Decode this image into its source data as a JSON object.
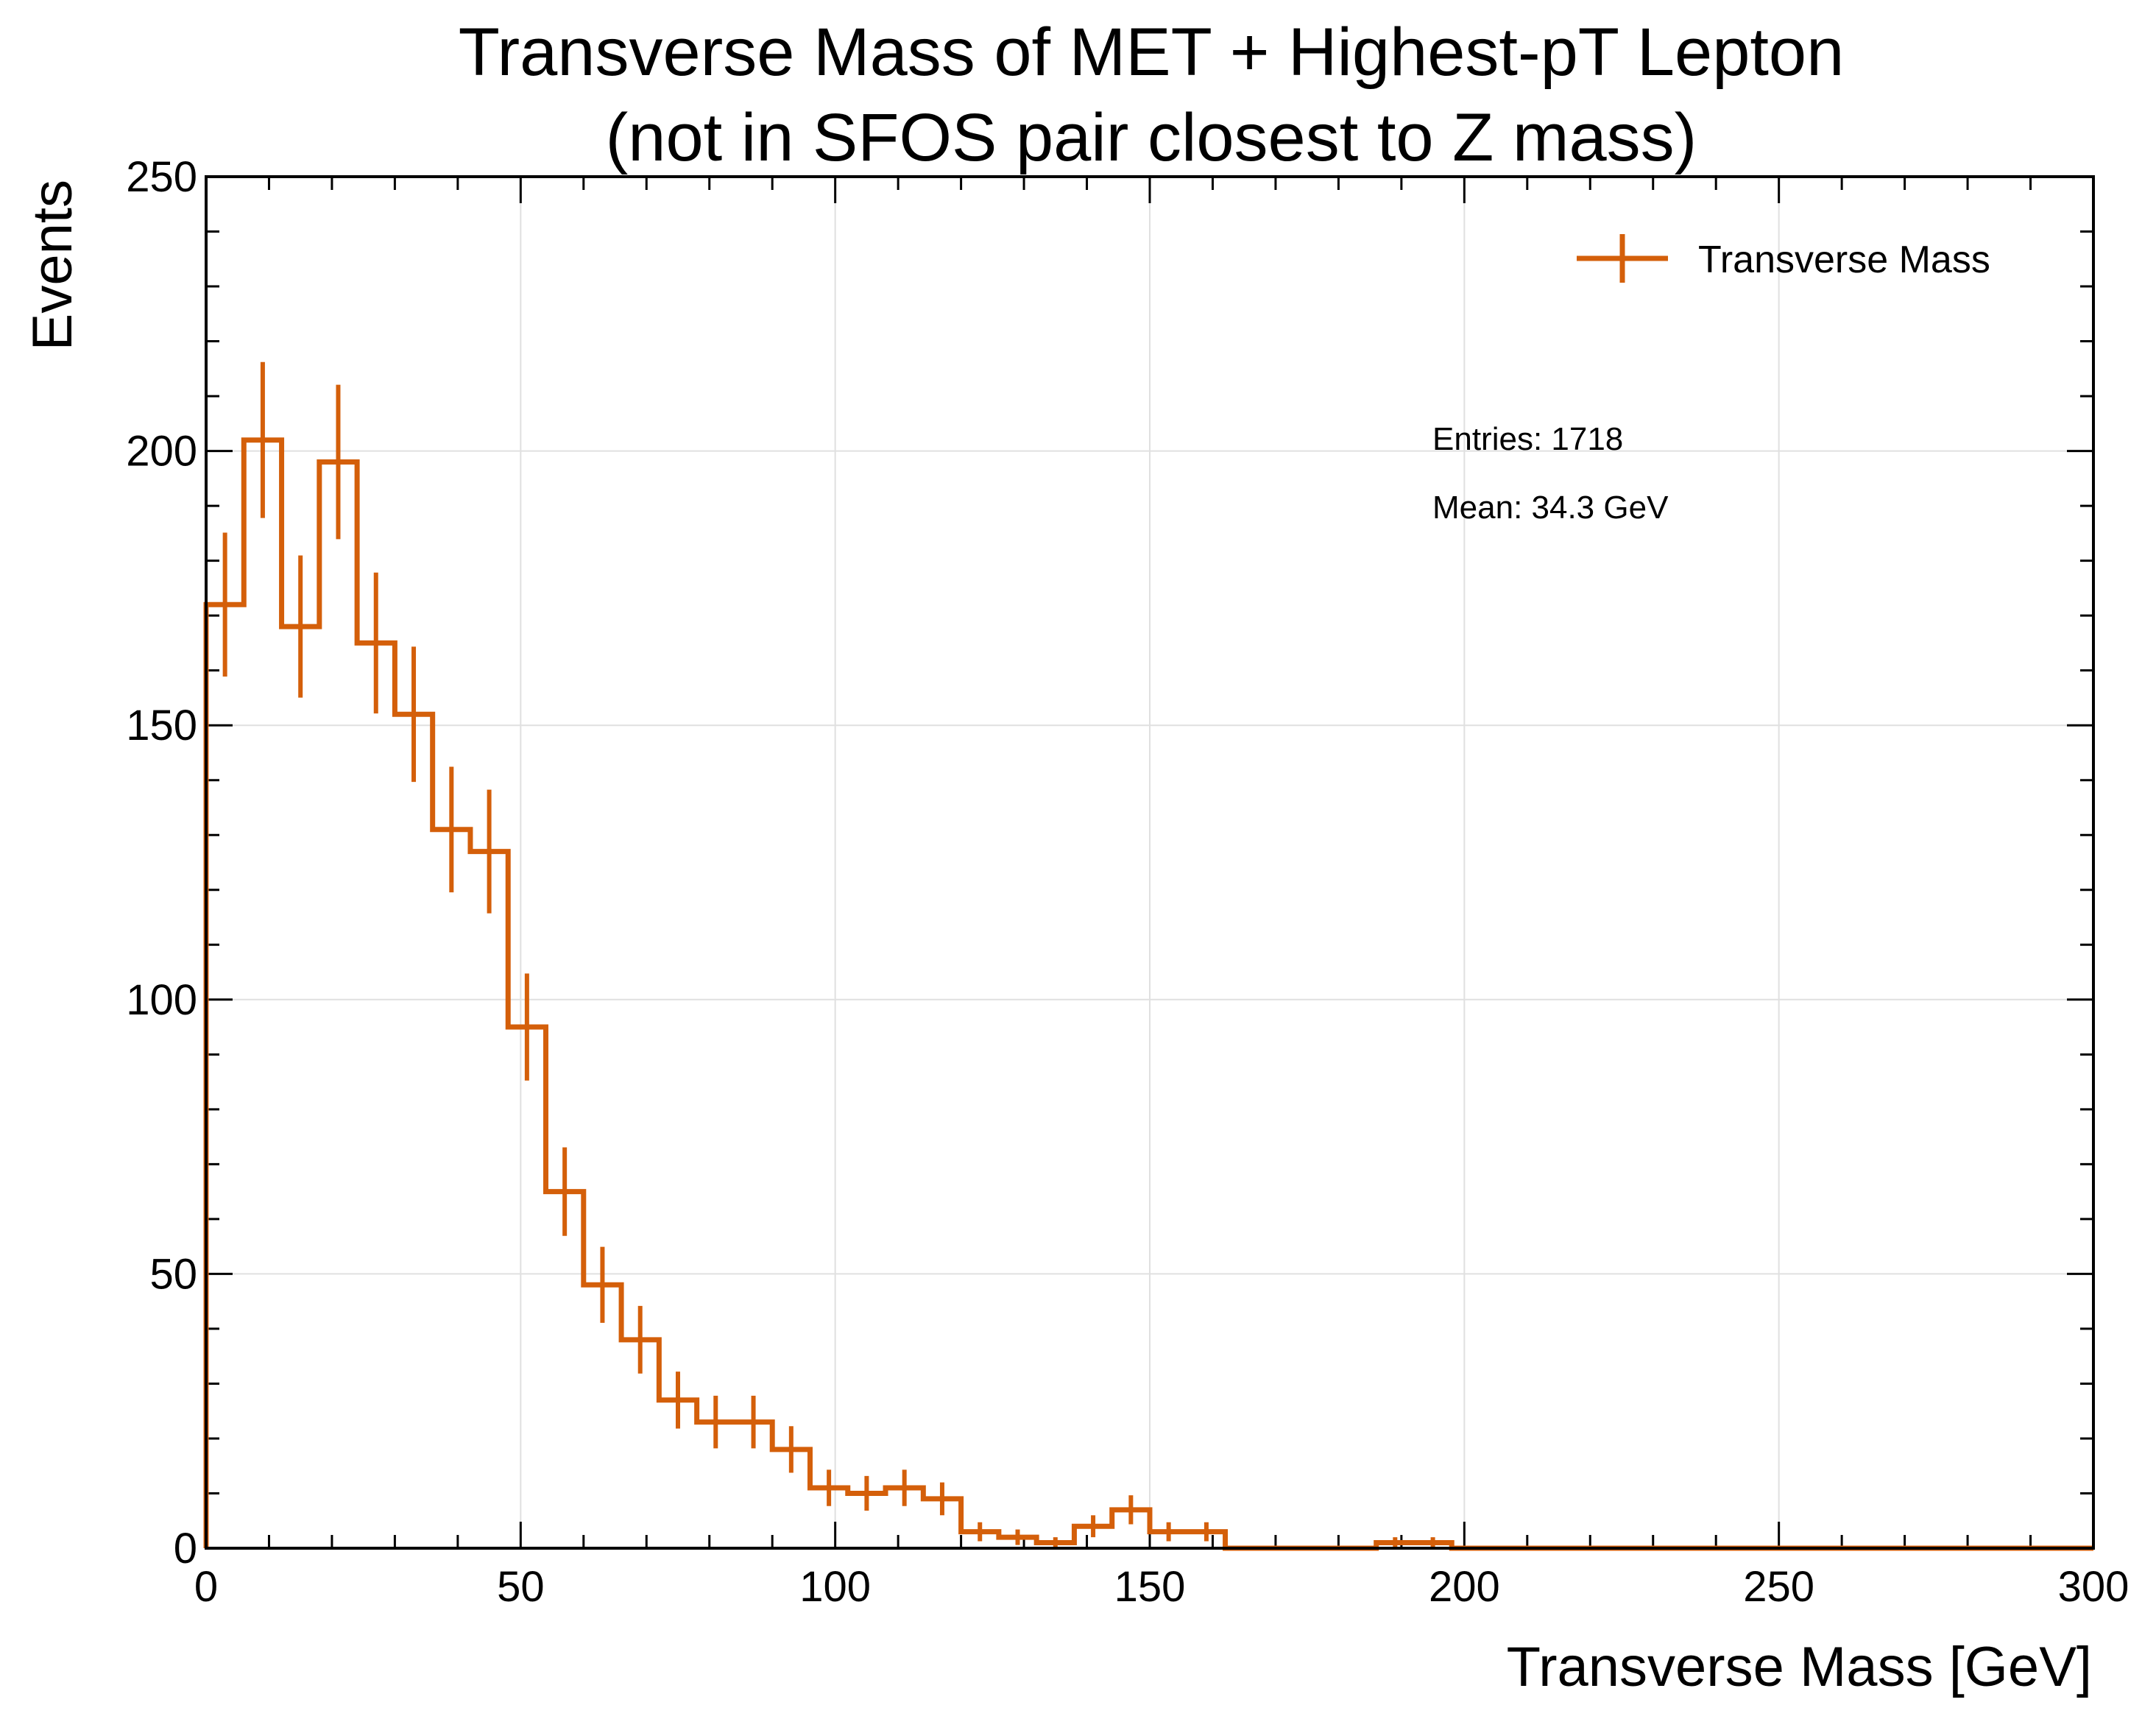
{
  "chart_data": {
    "type": "histogram",
    "title_lines": [
      "Transverse Mass of MET + Highest-pT Lepton",
      "(not in SFOS pair closest to Z mass)"
    ],
    "xlabel": "Transverse Mass [GeV]",
    "ylabel": "Events",
    "xlim": [
      0,
      300
    ],
    "ylim": [
      0,
      250
    ],
    "x_ticks": [
      0,
      50,
      100,
      150,
      200,
      250,
      300
    ],
    "y_ticks": [
      0,
      50,
      100,
      150,
      200,
      250
    ],
    "grid": true,
    "legend": {
      "placement": "top-right",
      "entries": [
        "Transverse Mass"
      ]
    },
    "annotations": [
      "Entries: 1718",
      "Mean: 34.3 GeV"
    ],
    "bin_width": 6,
    "bin_edges_start": 0,
    "series": [
      {
        "name": "Transverse Mass",
        "color": "#d45f0a",
        "values": [
          172,
          202,
          168,
          198,
          165,
          152,
          131,
          127,
          95,
          65,
          48,
          38,
          27,
          23,
          23,
          18,
          11,
          10,
          11,
          9,
          3,
          2,
          1,
          4,
          7,
          3,
          3,
          0,
          0,
          0,
          0,
          1,
          1,
          0,
          0,
          0,
          0,
          0,
          0,
          0,
          0,
          0,
          0,
          0,
          0,
          0,
          0,
          0,
          0,
          0
        ]
      }
    ]
  }
}
